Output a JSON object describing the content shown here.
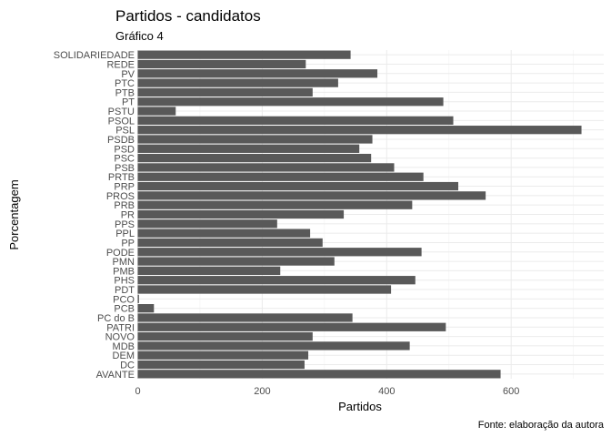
{
  "chart_data": {
    "type": "bar",
    "orientation": "horizontal",
    "title": "Partidos - candidatos",
    "subtitle": "Gráfico 4",
    "xlabel": "Partidos",
    "ylabel": "Porcentagem",
    "caption": "Fonte: elaboração da autora",
    "xlim": [
      0,
      730
    ],
    "xticks": [
      0,
      200,
      400,
      600
    ],
    "grid": true,
    "bar_color": "#595959",
    "categories": [
      "AVANTE",
      "DC",
      "DEM",
      "MDB",
      "NOVO",
      "PATRI",
      "PC do B",
      "PCB",
      "PCO",
      "PDT",
      "PHS",
      "PMB",
      "PMN",
      "PODE",
      "PP",
      "PPL",
      "PPS",
      "PR",
      "PRB",
      "PROS",
      "PRP",
      "PRTB",
      "PSB",
      "PSC",
      "PSD",
      "PSDB",
      "PSL",
      "PSOL",
      "PSTU",
      "PT",
      "PTB",
      "PTC",
      "PV",
      "REDE",
      "SOLIDARIEDADE"
    ],
    "values": [
      583,
      268,
      274,
      437,
      281,
      495,
      345,
      26,
      2,
      407,
      446,
      229,
      316,
      456,
      297,
      277,
      224,
      331,
      441,
      559,
      515,
      459,
      412,
      375,
      356,
      377,
      713,
      507,
      61,
      491,
      281,
      322,
      385,
      270,
      342
    ]
  }
}
